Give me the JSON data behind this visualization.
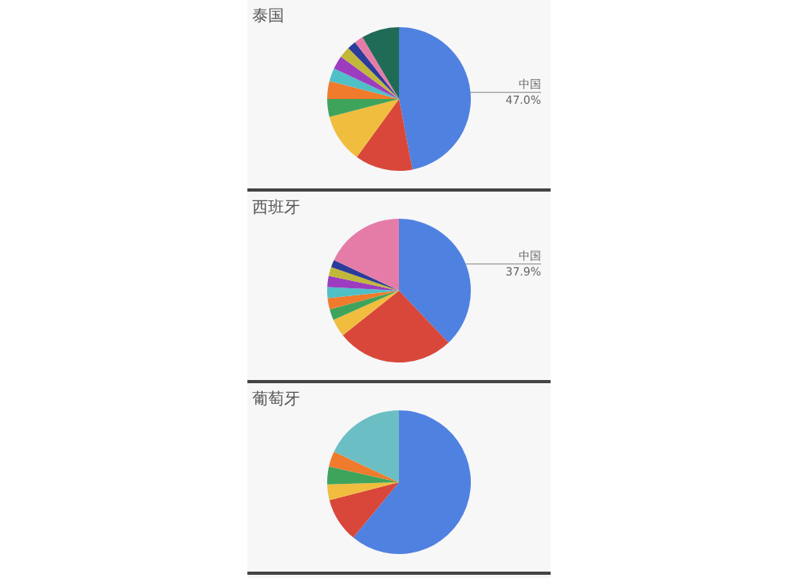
{
  "chart_data": [
    {
      "type": "pie",
      "title": "泰国",
      "categories": [
        "中国",
        null,
        null,
        null,
        null,
        null,
        null,
        null,
        null,
        null,
        null
      ],
      "values": [
        47.0,
        13,
        11,
        4,
        4,
        3,
        3,
        2.5,
        2,
        2,
        8.5
      ],
      "value_labels": [
        "47.0%",
        null,
        null,
        null,
        null,
        null,
        null,
        null,
        null,
        null,
        null
      ],
      "colors": [
        "#4f81e0",
        "#d9473a",
        "#f0bd3e",
        "#3fa45b",
        "#f07b2c",
        "#4fc0c6",
        "#9c3dc0",
        "#c1b83a",
        "#2b3c9a",
        "#e57ca8",
        "#1f6b56"
      ]
    },
    {
      "type": "pie",
      "title": "西班牙",
      "categories": [
        "中国",
        null,
        null,
        null,
        null,
        null,
        null,
        null,
        null,
        null
      ],
      "values": [
        37.9,
        26.4,
        4,
        2.5,
        2.5,
        2.5,
        2.5,
        2,
        1.7,
        18
      ],
      "value_labels": [
        "37.9%",
        null,
        null,
        null,
        null,
        null,
        null,
        null,
        null,
        null
      ],
      "colors": [
        "#4f81e0",
        "#d9473a",
        "#f0bd3e",
        "#3fa45b",
        "#f07b2c",
        "#4fc0c6",
        "#9c3dc0",
        "#c1b83a",
        "#2b3c9a",
        "#e57ca8"
      ]
    },
    {
      "type": "pie",
      "title": "葡萄牙",
      "categories": [
        null,
        null,
        null,
        null,
        null,
        null
      ],
      "values": [
        61,
        10,
        3.5,
        4,
        3.5,
        18
      ],
      "colors": [
        "#4f81e0",
        "#d9473a",
        "#f0bd3e",
        "#3fa45b",
        "#f07b2c",
        "#6bbfc4"
      ]
    }
  ]
}
